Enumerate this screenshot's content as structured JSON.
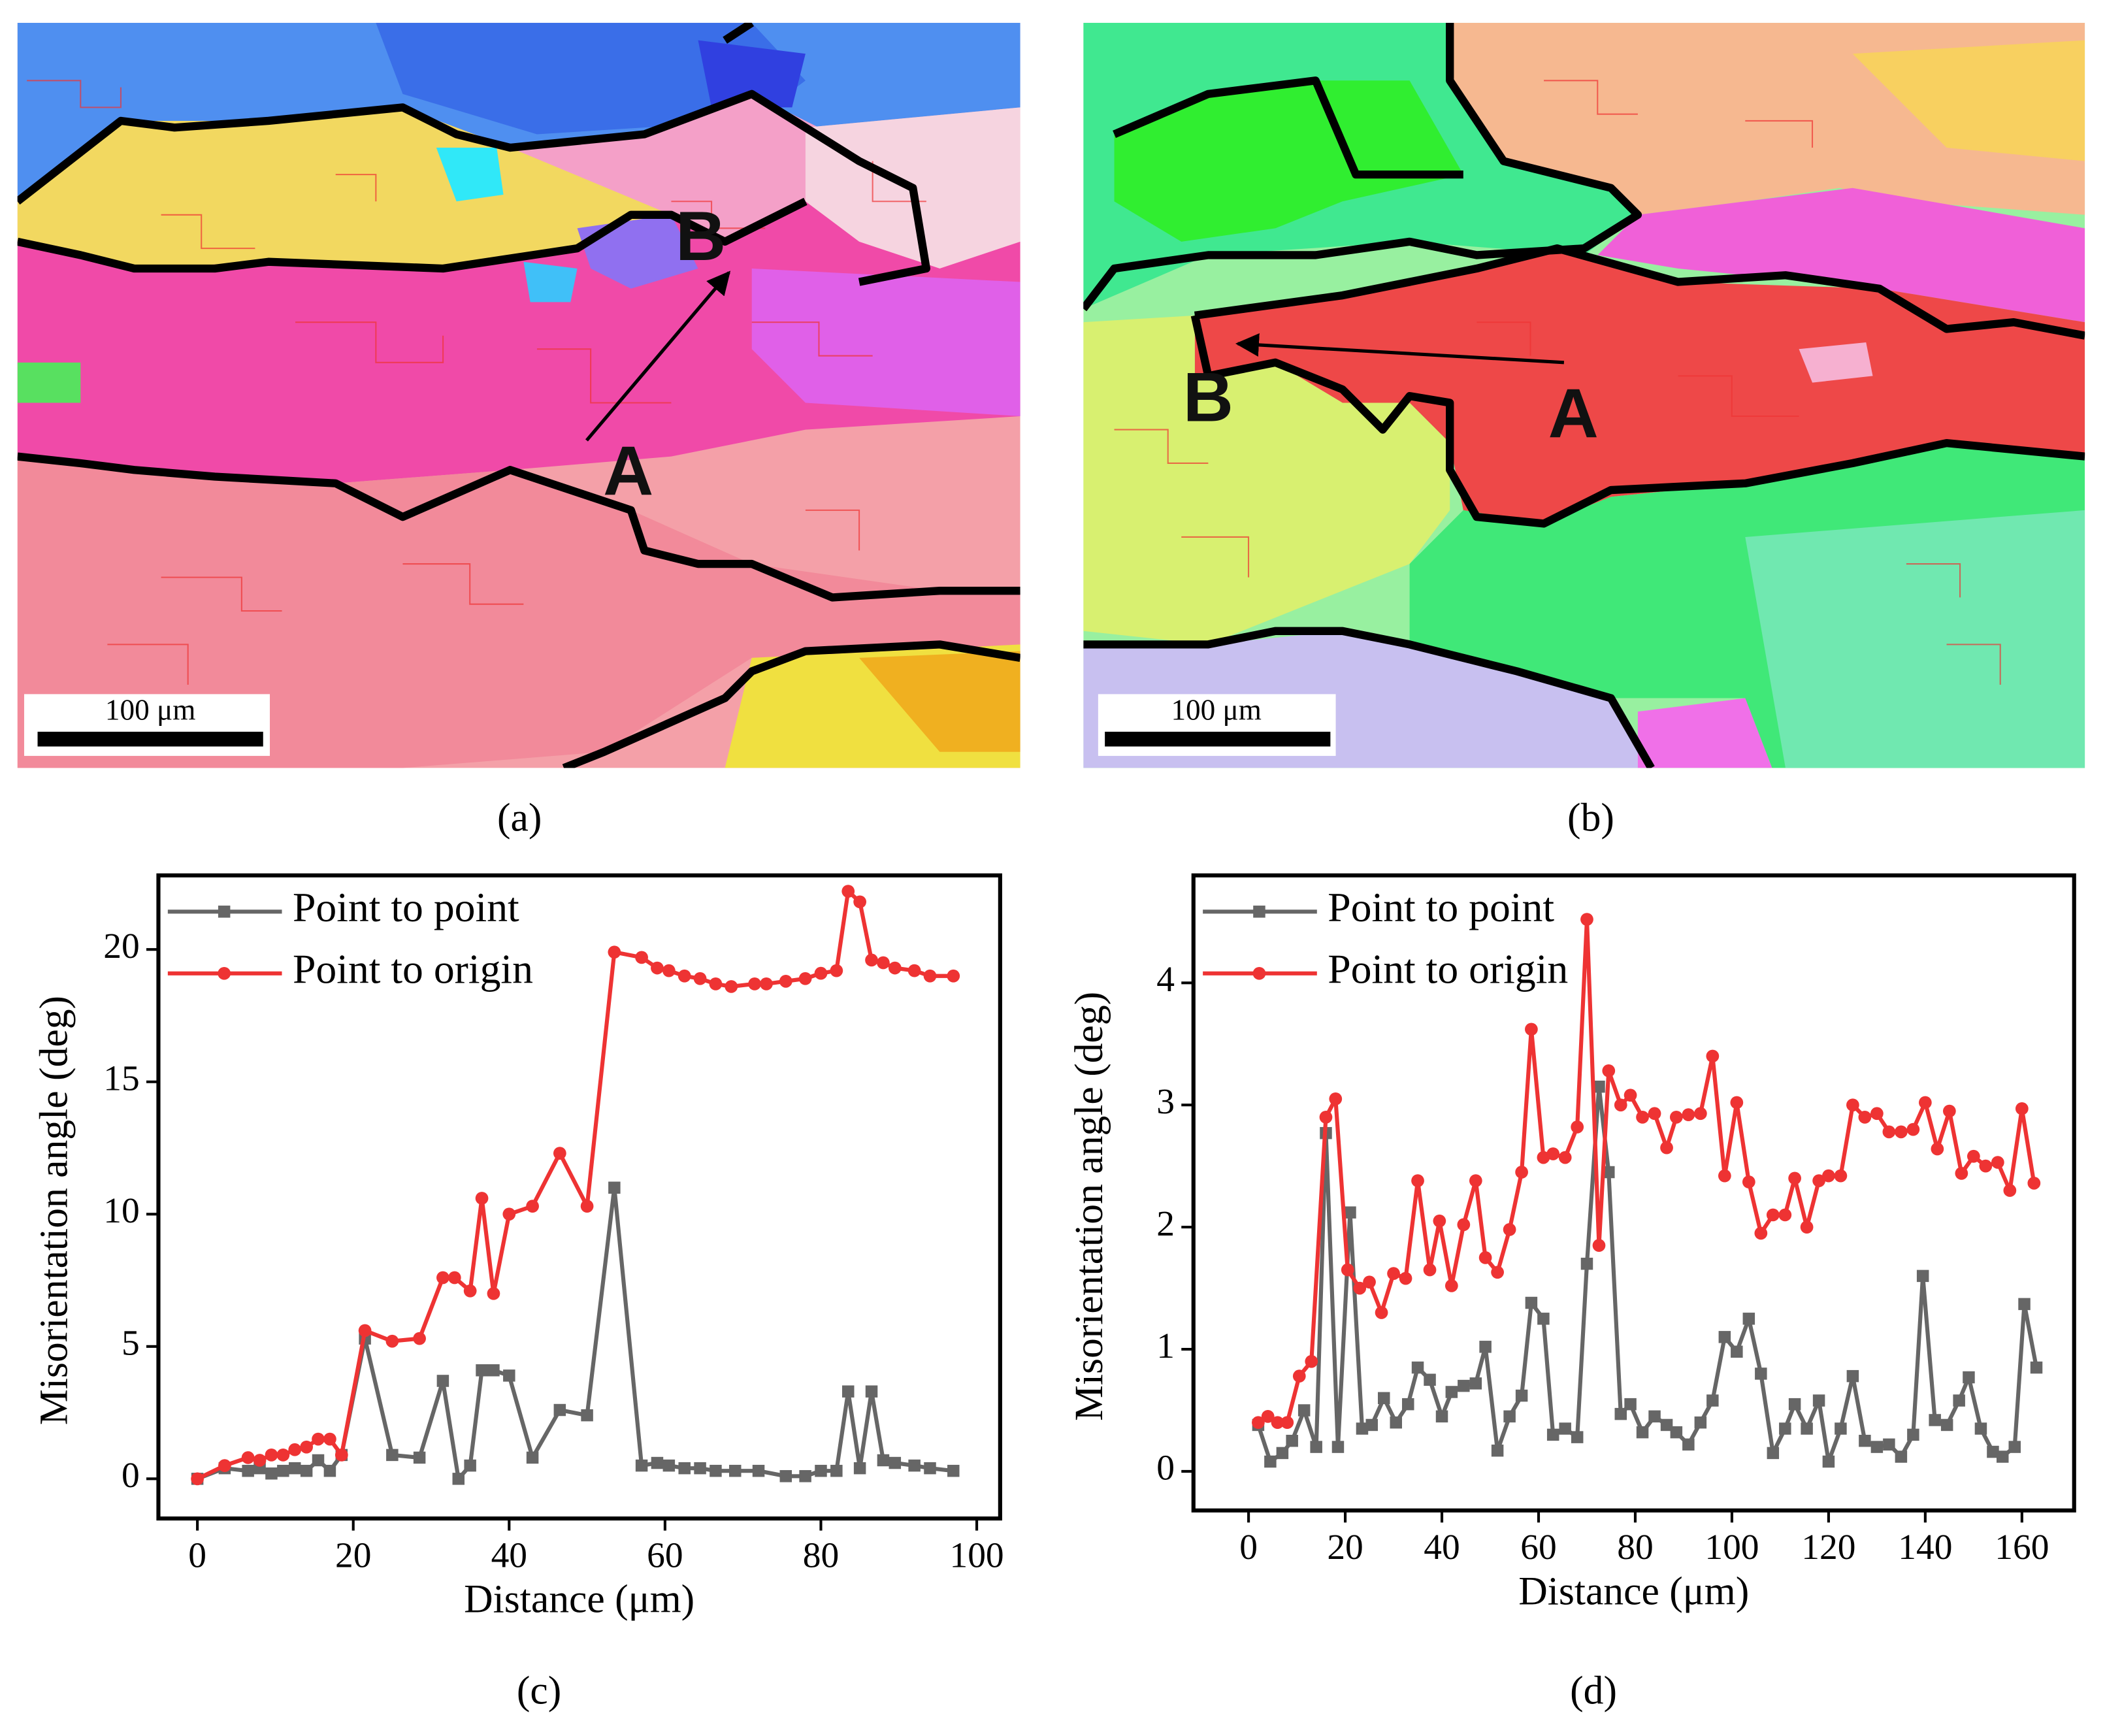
{
  "maps": [
    {
      "caption": "(a)",
      "scale_bar": "100 μm",
      "labels": [
        "A",
        "B"
      ]
    },
    {
      "caption": "(b)",
      "scale_bar": "100 μm",
      "labels": [
        "A",
        "B"
      ]
    }
  ],
  "chart_data": [
    {
      "type": "line",
      "caption": "(c)",
      "x_label": "Distance (μm)",
      "y_label": "Misorientation angle (deg)",
      "xlim": [
        -5,
        103
      ],
      "ylim": [
        -1.5,
        22.8
      ],
      "xticks": [
        0,
        20,
        40,
        60,
        80,
        100
      ],
      "yticks": [
        0,
        5,
        10,
        15,
        20
      ],
      "series": [
        {
          "name": "Point to point",
          "color": "#666666",
          "marker": "square",
          "x": [
            0,
            3.5,
            6.5,
            8,
            9.5,
            11,
            12.5,
            14,
            15.5,
            17,
            18.5,
            21.5,
            25,
            28.5,
            31.5,
            33.5,
            35,
            36.5,
            38,
            40,
            43,
            46.5,
            50,
            53.5,
            57,
            59,
            60.5,
            62.5,
            64.5,
            66.5,
            69,
            72,
            75.5,
            78,
            80,
            82,
            83.5,
            85,
            86.5,
            88,
            89.5,
            92,
            94,
            97
          ],
          "values": [
            0,
            0.4,
            0.3,
            0.4,
            0.2,
            0.3,
            0.4,
            0.3,
            0.7,
            0.3,
            0.9,
            5.3,
            0.9,
            0.8,
            3.7,
            0.0,
            0.5,
            4.1,
            4.1,
            3.9,
            0.8,
            2.6,
            2.4,
            11.0,
            0.5,
            0.6,
            0.5,
            0.4,
            0.4,
            0.3,
            0.3,
            0.3,
            0.1,
            0.1,
            0.3,
            0.3,
            3.3,
            0.4,
            3.3,
            0.7,
            0.6,
            0.5,
            0.4,
            0.3
          ]
        },
        {
          "name": "Point to origin",
          "color": "#ee3333",
          "marker": "circle",
          "x": [
            0,
            3.5,
            6.5,
            8,
            9.5,
            11,
            12.5,
            14,
            15.5,
            17,
            18.5,
            21.5,
            25,
            28.5,
            31.5,
            33,
            35,
            36.5,
            38,
            40,
            43,
            46.5,
            50,
            53.5,
            57,
            59,
            60.5,
            62.5,
            64.5,
            66.5,
            68.5,
            71.5,
            73,
            75.5,
            78,
            80,
            82,
            83.5,
            85,
            86.5,
            88,
            89.5,
            92,
            94,
            97
          ],
          "values": [
            0,
            0.5,
            0.8,
            0.7,
            0.9,
            0.9,
            1.1,
            1.2,
            1.5,
            1.5,
            0.9,
            5.6,
            5.2,
            5.3,
            7.6,
            7.6,
            7.1,
            10.6,
            7.0,
            10.0,
            10.3,
            12.3,
            10.3,
            19.9,
            19.7,
            19.3,
            19.2,
            19.0,
            18.9,
            18.7,
            18.6,
            18.7,
            18.7,
            18.8,
            18.9,
            19.1,
            19.2,
            22.2,
            21.8,
            19.6,
            19.5,
            19.3,
            19.2,
            19.0,
            19.0
          ]
        }
      ]
    },
    {
      "type": "line",
      "caption": "(d)",
      "x_label": "Distance (μm)",
      "y_label": "Misorientation angle (deg)",
      "xlim": [
        -11.4,
        170.8
      ],
      "ylim": [
        -0.32,
        4.88
      ],
      "xticks": [
        0,
        20,
        40,
        60,
        80,
        100,
        120,
        140,
        160
      ],
      "yticks": [
        0,
        1,
        2,
        3,
        4
      ],
      "series": [
        {
          "name": "Point to point",
          "color": "#666666",
          "marker": "square",
          "x": [
            2,
            4.5,
            7,
            9,
            11.5,
            14,
            16,
            18.5,
            21,
            23.5,
            25.5,
            28,
            30.5,
            33,
            35,
            37.5,
            40,
            42,
            44.5,
            47,
            49,
            51.5,
            54,
            56.5,
            58.5,
            61,
            63,
            65.5,
            68,
            70,
            72.5,
            74.5,
            77,
            79,
            81.5,
            84,
            86.5,
            88.5,
            91,
            93.5,
            96,
            98.5,
            101,
            103.5,
            106,
            108.5,
            111,
            113,
            115.5,
            118,
            120,
            122.5,
            125,
            127.5,
            130,
            132.5,
            135,
            137.5,
            139.5,
            142,
            144.5,
            147,
            149,
            151.5,
            154,
            156,
            158.5,
            160.5,
            163
          ],
          "values": [
            0.38,
            0.08,
            0.15,
            0.25,
            0.5,
            0.2,
            2.77,
            0.2,
            2.12,
            0.35,
            0.38,
            0.6,
            0.4,
            0.55,
            0.85,
            0.75,
            0.45,
            0.65,
            0.7,
            0.72,
            1.02,
            0.17,
            0.45,
            0.62,
            1.38,
            1.25,
            0.3,
            0.35,
            0.28,
            1.7,
            3.15,
            2.45,
            0.47,
            0.55,
            0.32,
            0.45,
            0.38,
            0.32,
            0.22,
            0.4,
            0.58,
            1.1,
            0.98,
            1.25,
            0.8,
            0.15,
            0.35,
            0.55,
            0.35,
            0.58,
            0.08,
            0.35,
            0.78,
            0.25,
            0.2,
            0.22,
            0.12,
            0.3,
            1.6,
            0.42,
            0.38,
            0.58,
            0.77,
            0.35,
            0.16,
            0.12,
            0.2,
            1.37,
            0.85
          ]
        },
        {
          "name": "Point to origin",
          "color": "#ee3333",
          "marker": "circle",
          "x": [
            2,
            4,
            6,
            8,
            10.5,
            13,
            16,
            18,
            20.5,
            23,
            25,
            27.5,
            30,
            32.5,
            35,
            37.5,
            39.5,
            42,
            44.5,
            47,
            49,
            51.5,
            54,
            56.5,
            58.5,
            61,
            63,
            65.5,
            68,
            70,
            72.5,
            74.5,
            77,
            79,
            81.5,
            84,
            86.5,
            88.5,
            91,
            93.5,
            96,
            98.5,
            101,
            103.5,
            106,
            108.5,
            111,
            113,
            115.5,
            118,
            120,
            122.5,
            125,
            127.5,
            130,
            132.5,
            135,
            137.5,
            140,
            142.5,
            145,
            147.5,
            150,
            152.5,
            155,
            157.5,
            160,
            162.5
          ],
          "values": [
            0.4,
            0.45,
            0.4,
            0.4,
            0.78,
            0.9,
            2.9,
            3.05,
            1.65,
            1.5,
            1.55,
            1.3,
            1.62,
            1.58,
            2.38,
            1.65,
            2.05,
            1.52,
            2.02,
            2.38,
            1.75,
            1.63,
            1.98,
            2.45,
            3.62,
            2.57,
            2.6,
            2.57,
            2.82,
            4.52,
            1.85,
            3.28,
            3.0,
            3.08,
            2.9,
            2.93,
            2.65,
            2.9,
            2.92,
            2.93,
            3.4,
            2.42,
            3.02,
            2.37,
            1.95,
            2.1,
            2.1,
            2.4,
            2.0,
            2.38,
            2.42,
            2.42,
            3.0,
            2.9,
            2.93,
            2.78,
            2.78,
            2.8,
            3.02,
            2.64,
            2.95,
            2.44,
            2.58,
            2.5,
            2.53,
            2.3,
            2.97,
            2.36
          ]
        }
      ]
    }
  ]
}
